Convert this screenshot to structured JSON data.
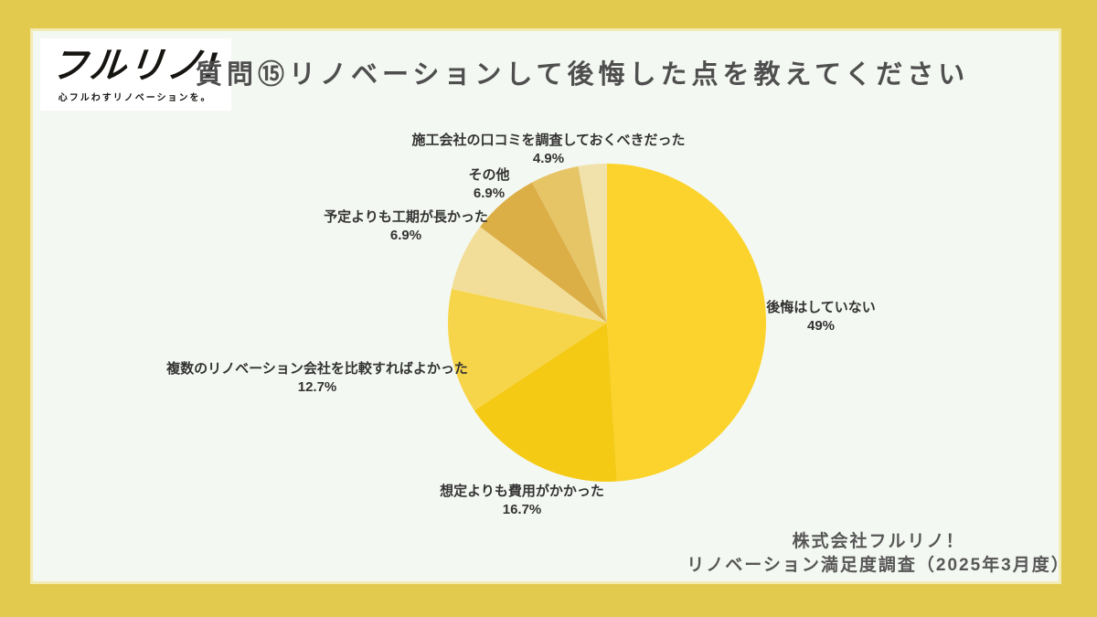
{
  "frame": {
    "bg_color": "#E2CA4E",
    "panel_color": "#F4F8F2"
  },
  "header": {
    "logo_text": "フルリノ!",
    "logo_tagline": "心フルわすリノベーションを。",
    "title": "質問⑮リノベーションして後悔した点を教えてください"
  },
  "chart_data": {
    "type": "pie",
    "title": "質問⑮リノベーションして後悔した点を教えてください",
    "direction": "clockwise",
    "start_angle_deg": 0,
    "legend": "none",
    "labels": [
      "後悔はしていない",
      "想定よりも費用がかかった",
      "複数のリノベーション会社を比較すればよかった",
      "予定よりも工期が長かった",
      "その他",
      "施工会社の口コミを調査しておくべきだった",
      ""
    ],
    "values": [
      49,
      16.7,
      12.7,
      6.9,
      6.9,
      4.9,
      2.9
    ],
    "percent_labels": [
      "49%",
      "16.7%",
      "12.7%",
      "6.9%",
      "6.9%",
      "4.9%",
      ""
    ],
    "colors": [
      "#FBD32C",
      "#F4CA14",
      "#F7D54A",
      "#F2DE98",
      "#DCAF46",
      "#E6C566",
      "#F0E2AA"
    ]
  },
  "footer": {
    "line1": "株式会社フルリノ！",
    "line2": "リノベーション満足度調査（2025年3月度）"
  }
}
